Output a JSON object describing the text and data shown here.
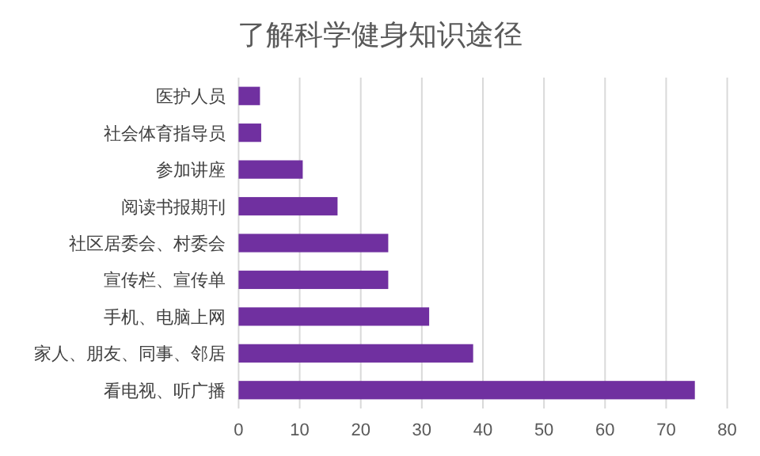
{
  "chart_data": {
    "type": "bar",
    "orientation": "horizontal",
    "title": "了解科学健身知识途径",
    "categories": [
      "医护人员",
      "社会体育指导员",
      "参加讲座",
      "阅读书报期刊",
      "社区居委会、村委会",
      "宣传栏、宣传单",
      "手机、电脑上网",
      "家人、朋友、同事、邻居",
      "看电视、听广播"
    ],
    "values": [
      3.5,
      3.7,
      10.5,
      16.2,
      24.5,
      24.5,
      31.2,
      38.4,
      74.7
    ],
    "color": "#7030a0",
    "xlim": [
      0,
      80
    ],
    "xticks": [
      0,
      10,
      20,
      30,
      40,
      50,
      60,
      70,
      80
    ],
    "grid": "x"
  }
}
